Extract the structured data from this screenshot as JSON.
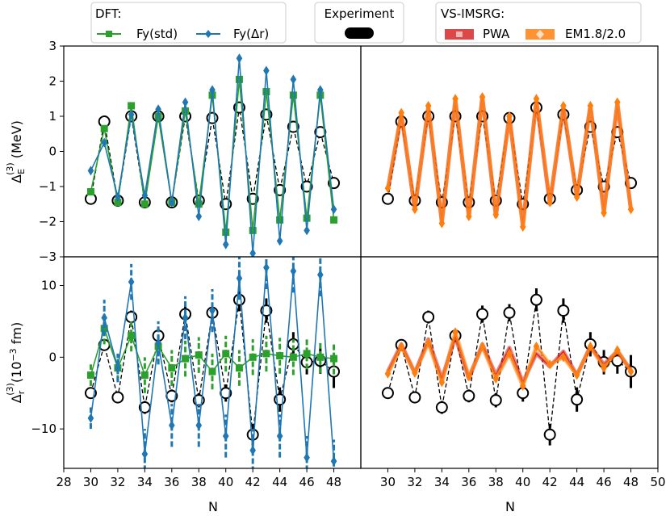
{
  "chart_data": [
    {
      "type": "line",
      "panel": "top-left",
      "ylabel_main": "Δ",
      "ylabel_sub": "E",
      "ylabel_sup": "(3)",
      "ylabel_unit": " (MeV)",
      "xlim": [
        28,
        50
      ],
      "ylim": [
        -3,
        3
      ],
      "yticks": [
        "−3",
        "−2",
        "−1",
        "0",
        "1",
        "2",
        "3"
      ],
      "ytick_values": [
        -3,
        -2,
        -1,
        0,
        1,
        2,
        3
      ],
      "x": [
        30,
        31,
        32,
        33,
        34,
        35,
        36,
        37,
        38,
        39,
        40,
        41,
        42,
        43,
        44,
        45,
        46,
        47,
        48
      ],
      "series": [
        {
          "name": "Experiment",
          "color": "#000000",
          "style": "dashed",
          "marker": "circle",
          "values": [
            -1.35,
            0.85,
            -1.4,
            1.0,
            -1.45,
            1.0,
            -1.45,
            1.0,
            -1.4,
            0.95,
            -1.5,
            1.25,
            -1.35,
            1.05,
            -1.1,
            0.7,
            -1.0,
            0.55,
            -0.9
          ]
        },
        {
          "name": "Fy(std)",
          "color": "#2ca02c",
          "style": "solid",
          "marker": "square",
          "values": [
            -1.15,
            0.65,
            -1.45,
            1.3,
            -1.5,
            1.0,
            -1.45,
            1.15,
            -1.5,
            1.6,
            -2.3,
            2.05,
            -2.25,
            1.7,
            -1.95,
            1.6,
            -1.9,
            1.6,
            -1.95
          ]
        },
        {
          "name": "Fy(Δr)",
          "color": "#1f77b4",
          "style": "solid",
          "marker": "diamond",
          "values": [
            -0.55,
            0.25,
            -1.3,
            1.05,
            -1.25,
            1.2,
            -1.45,
            1.4,
            -1.85,
            1.75,
            -2.65,
            2.65,
            -2.9,
            2.3,
            -2.55,
            2.05,
            -2.25,
            1.75,
            -1.65
          ]
        }
      ]
    },
    {
      "type": "line",
      "panel": "top-right",
      "xlim": [
        28,
        50
      ],
      "ylim": [
        -3,
        3
      ],
      "x": [
        30,
        31,
        32,
        33,
        34,
        35,
        36,
        37,
        38,
        39,
        40,
        41,
        42,
        43,
        44,
        45,
        46,
        47,
        48
      ],
      "series": [
        {
          "name": "Experiment",
          "color": "#000000",
          "style": "dashed",
          "marker": "circle",
          "values": [
            -1.35,
            0.85,
            -1.4,
            1.0,
            -1.45,
            1.0,
            -1.45,
            1.0,
            -1.4,
            0.95,
            -1.5,
            1.25,
            -1.35,
            1.05,
            -1.1,
            0.7,
            -1.0,
            0.55,
            -0.9
          ]
        },
        {
          "name": "PWA",
          "color": "#d62728",
          "style": "solid",
          "marker": "none",
          "values": [
            -1.1,
            1.05,
            -1.65,
            1.25,
            -2.0,
            1.45,
            -1.85,
            1.55,
            -1.85,
            1.0,
            -2.1,
            1.45,
            -1.5,
            1.25,
            -1.3,
            1.3,
            -1.7,
            1.35,
            -1.65
          ]
        },
        {
          "name": "EM1.8/2.0",
          "color": "#ff7f0e",
          "style": "solid",
          "marker": "diamond",
          "values": [
            -1.05,
            1.1,
            -1.65,
            1.3,
            -2.05,
            1.5,
            -1.85,
            1.55,
            -1.8,
            1.0,
            -2.15,
            1.5,
            -1.45,
            1.3,
            -1.3,
            1.3,
            -1.75,
            1.4,
            -1.65
          ]
        }
      ]
    },
    {
      "type": "line",
      "panel": "bottom-left",
      "ylabel_main": "Δ",
      "ylabel_sub": "r",
      "ylabel_sup": "(3)",
      "ylabel_unit": "(10",
      "ylabel_exp": "−3",
      "ylabel_unit2": " fm)",
      "xlabel": "N",
      "xlim": [
        28,
        50
      ],
      "ylim": [
        -15.5,
        14
      ],
      "xticks": [
        "28",
        "30",
        "32",
        "34",
        "36",
        "38",
        "40",
        "42",
        "44",
        "46",
        "48"
      ],
      "xtick_values": [
        28,
        30,
        32,
        34,
        36,
        38,
        40,
        42,
        44,
        46,
        48
      ],
      "yticks": [
        "−10",
        "0",
        "10"
      ],
      "ytick_values": [
        -10,
        0,
        10
      ],
      "x": [
        30,
        31,
        32,
        33,
        34,
        35,
        36,
        37,
        38,
        39,
        40,
        41,
        42,
        43,
        44,
        45,
        46,
        47,
        48
      ],
      "series": [
        {
          "name": "Experiment",
          "color": "#000000",
          "style": "dashed",
          "marker": "circle",
          "values": [
            -5,
            1.7,
            -5.6,
            5.6,
            -7,
            3,
            -5.4,
            6,
            -6,
            6.2,
            -5,
            8,
            -10.8,
            6.5,
            -5.9,
            1.8,
            -0.7,
            -0.5,
            -2
          ],
          "errors": [
            0.8,
            0.8,
            0.8,
            0.9,
            0.9,
            0.9,
            0.9,
            1.2,
            1.0,
            1.2,
            1.2,
            1.6,
            1.5,
            1.7,
            1.7,
            1.7,
            1.7,
            1.8,
            2.3
          ]
        },
        {
          "name": "Fy(std)",
          "color": "#2ca02c",
          "style": "solid",
          "marker": "square",
          "values": [
            -2.5,
            4,
            -1.5,
            3,
            -2.5,
            1.5,
            -1.5,
            -0.2,
            0.3,
            -2,
            0.5,
            -1.5,
            0,
            0.5,
            0.2,
            0,
            0.5,
            0,
            -0.2
          ],
          "errors": [
            1.5,
            2.2,
            1.8,
            2.2,
            2.5,
            2.5,
            2.5,
            2.5,
            2.5,
            2.5,
            2.5,
            2.5,
            2.5,
            2.5,
            2.5,
            2.5,
            2.2,
            2.2,
            2.2
          ]
        },
        {
          "name": "Fy(Δr)",
          "color": "#1f77b4",
          "style": "solid",
          "marker": "diamond",
          "values": [
            -8.5,
            5.5,
            -1.5,
            10.5,
            -13.5,
            2,
            -9.5,
            5.5,
            -9.5,
            6.5,
            -11,
            11,
            -13,
            12.5,
            -11,
            12,
            -14,
            11.5,
            -14.5
          ],
          "errors": [
            1.5,
            2.5,
            2.0,
            2.5,
            3.5,
            3.0,
            3.0,
            3.0,
            3.0,
            3.0,
            3.0,
            3.0,
            3.0,
            3.0,
            3.0,
            3.0,
            3.0,
            3.0,
            3.0
          ]
        }
      ]
    },
    {
      "type": "line",
      "panel": "bottom-right",
      "xlabel": "N",
      "xlim": [
        28,
        50
      ],
      "ylim": [
        -15.5,
        14
      ],
      "xticks": [
        "30",
        "32",
        "34",
        "36",
        "38",
        "40",
        "42",
        "44",
        "46",
        "48",
        "50"
      ],
      "xtick_values": [
        30,
        32,
        34,
        36,
        38,
        40,
        42,
        44,
        46,
        48,
        50
      ],
      "x": [
        30,
        31,
        32,
        33,
        34,
        35,
        36,
        37,
        38,
        39,
        40,
        41,
        42,
        43,
        44,
        45,
        46,
        47,
        48
      ],
      "series": [
        {
          "name": "Experiment",
          "color": "#000000",
          "style": "dashed",
          "marker": "circle",
          "values": [
            -5,
            1.7,
            -5.6,
            5.6,
            -7,
            3,
            -5.4,
            6,
            -6,
            6.2,
            -5,
            8,
            -10.8,
            6.5,
            -5.9,
            1.8,
            -0.7,
            -0.5,
            -2
          ],
          "errors": [
            0.8,
            0.8,
            0.8,
            0.9,
            0.9,
            0.9,
            0.9,
            1.2,
            1.0,
            1.2,
            1.2,
            1.6,
            1.5,
            1.7,
            1.7,
            1.7,
            1.7,
            1.8,
            2.3
          ]
        },
        {
          "name": "PWA",
          "color": "#d62728",
          "style": "solid",
          "marker": "none",
          "values": [
            -2,
            1.8,
            -2.2,
            2.5,
            -3,
            2.8,
            -3,
            1.8,
            -2.5,
            1.3,
            -3.5,
            0.5,
            -1.3,
            0.8,
            -2.5,
            1.5,
            -1,
            0.8,
            -1.8
          ]
        },
        {
          "name": "EM1.8/2.0",
          "color": "#ff7f0e",
          "style": "solid",
          "marker": "diamond",
          "values": [
            -2.3,
            1.5,
            -2.2,
            2,
            -3.5,
            3.5,
            -2.7,
            1.5,
            -3,
            0.5,
            -4,
            1.5,
            -1,
            0,
            -2.5,
            1.5,
            -1.5,
            1,
            -2
          ]
        }
      ]
    }
  ],
  "legends": {
    "dft": {
      "title": "DFT:",
      "items": [
        "Fy(std)",
        "Fy(Δr)"
      ],
      "colors": [
        "#2ca02c",
        "#1f77b4"
      ]
    },
    "experiment": {
      "title": "Experiment",
      "color": "#000000"
    },
    "imsrg": {
      "title": "VS-IMSRG:",
      "items": [
        "PWA",
        "EM1.8/2.0"
      ],
      "colors": [
        "#d62728",
        "#ff7f0e"
      ]
    }
  }
}
